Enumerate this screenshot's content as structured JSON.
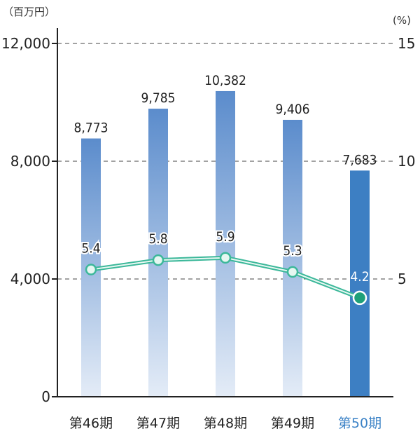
{
  "chart_data": {
    "type": "bar+line",
    "categories": [
      "第46期",
      "第47期",
      "第48期",
      "第49期",
      "第50期"
    ],
    "highlight_index": 4,
    "series": [
      {
        "values": [
          8773,
          9785,
          10382,
          9406,
          7683
        ],
        "labels": [
          "8,773",
          "9,785",
          "10,382",
          "9,406",
          "7,683"
        ],
        "axis": "left"
      },
      {
        "values": [
          5.4,
          5.8,
          5.9,
          5.3,
          4.2
        ],
        "labels": [
          "5.4",
          "5.8",
          "5.9",
          "5.3",
          "4.2"
        ],
        "axis": "right"
      }
    ],
    "y_left": {
      "unit": "（百万円）",
      "ylim": [
        0,
        12000
      ],
      "ticks": [
        0,
        4000,
        8000,
        12000
      ],
      "tick_labels": [
        "0",
        "4,000",
        "8,000",
        "12,000"
      ]
    },
    "y_right": {
      "unit": "(%)",
      "ylim": [
        0,
        15
      ],
      "ticks": [
        5,
        10,
        15
      ],
      "tick_labels": [
        "5",
        "10",
        "15"
      ]
    },
    "grid": "dashed horizontal at ticks",
    "colors": {
      "bar_top": "#5b8ccc",
      "bar_bottom": "#e4ecf7",
      "bar_highlight": "#3d7fc3",
      "line": "#3cb89a",
      "point_fill": "#e6f7f1",
      "highlight_point": "#1fa079",
      "highlight_label": "#3b82c6",
      "axis": "#222222"
    }
  }
}
